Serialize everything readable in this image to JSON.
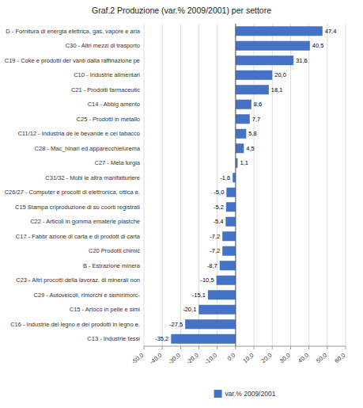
{
  "chart_data": {
    "type": "bar",
    "orientation": "horizontal",
    "title": "Graf.2 Produzione (var.% 2009/2001) per settore",
    "categories": [
      "D - Fornitura di energia elettrica, gas, vapore e aria",
      "C30 - Altri mezzi di trasporto",
      "C19 - Coke e prodotti der vanti dalla raffinazione pe",
      "C10 - Industrie alimentari",
      "C21 - Prodotti farmaceutic",
      "C14 - Abbig amento",
      "C25 - Prodotti in metallo",
      "C11/12 - Industria de le bevande e cel tabacco",
      "C28 - Mac_hinari ed apparecchielurema",
      "C27 - Meta lurgia",
      "C31/32 - Mobi le altra manifatturiere",
      "C26/27 - Computer e procolti di elettronica, ottica e.",
      "C15  Stampa criproduzione di su coorti registrati",
      "C22 - Articoli in gomma ematerie plastche",
      "C17 - Fabbr azione di carta e di prodott di carta",
      "C20  Prodotti chimic",
      "B - Estrazione minera",
      "C23 - Altri procotti della lavoraz. di minerali non",
      "C29 - Autoveicoli, rimorchi e semirimorc-",
      "C15 - Artoco in pelle e simi",
      "C16 - Industrie del legno e dei prodotti in legno e.",
      "C13 - Industrie tessi"
    ],
    "series": [
      {
        "name": "var.% 2009/2001",
        "color": "#4472C4",
        "values": [
          47.4,
          40.5,
          31.6,
          20.0,
          18.1,
          8.6,
          7.7,
          5.8,
          4.5,
          1.1,
          -1.6,
          -5.0,
          -5.2,
          -5.4,
          -7.2,
          -7.2,
          -8.7,
          -10.5,
          -15.1,
          -20.1,
          -27.5,
          -35.2
        ],
        "value_labels": [
          "47,4",
          "40,5",
          "31,6",
          "20,0",
          "18,1",
          "8,6",
          "7,7",
          "5,8",
          "4,5",
          "1,1",
          "-1,6",
          "-5,0",
          "-5,2",
          "-5,4",
          "-7,2",
          "-7,2",
          "-8,7",
          "-10,5",
          "-15,1",
          "-20,1",
          "-27,5",
          "-35,2"
        ]
      }
    ],
    "xlim": [
      -50,
      60
    ],
    "xticks": [
      {
        "value": -50,
        "label": "-50,0"
      },
      {
        "value": -40,
        "label": "-40,0"
      },
      {
        "value": -30,
        "label": "-30,0"
      },
      {
        "value": -20,
        "label": "-20,0"
      },
      {
        "value": -10,
        "label": "-10,0"
      },
      {
        "value": 0,
        "label": "0,0"
      },
      {
        "value": 10,
        "label": "10,0"
      },
      {
        "value": 20,
        "label": "20,0"
      },
      {
        "value": 30,
        "label": "30,0"
      },
      {
        "value": 40,
        "label": "40,0"
      },
      {
        "value": 50,
        "label": "50,0"
      },
      {
        "value": 60,
        "label": "60,0"
      }
    ],
    "grid": true,
    "data_labels": true,
    "legend": "bottom"
  }
}
